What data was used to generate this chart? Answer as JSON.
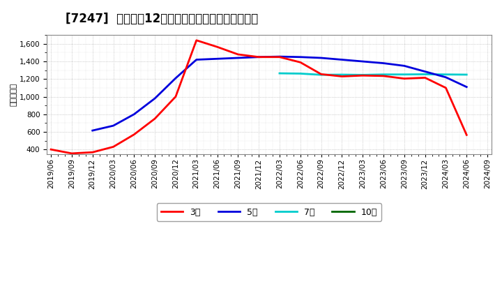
{
  "title": "[7247]  経常利益12か月移動合計の標準偏差の推移",
  "ylabel": "（百万円）",
  "ylim": [
    350,
    1700
  ],
  "yticks": [
    400,
    600,
    800,
    1000,
    1200,
    1400,
    1600
  ],
  "bg_color": "#ffffff",
  "plot_bg_color": "#ffffff",
  "grid_color": "#aaaaaa",
  "series": {
    "3year": {
      "label": "3年",
      "color": "#ff0000",
      "dates": [
        "2019/06",
        "2019/09",
        "2019/12",
        "2020/03",
        "2020/06",
        "2020/09",
        "2020/12",
        "2021/03",
        "2021/06",
        "2021/09",
        "2021/12",
        "2022/03",
        "2022/06",
        "2022/09",
        "2022/12",
        "2023/03",
        "2023/06",
        "2023/09",
        "2023/12",
        "2024/03",
        "2024/06"
      ],
      "values": [
        400,
        355,
        368,
        430,
        570,
        750,
        1000,
        1640,
        1565,
        1480,
        1450,
        1450,
        1390,
        1255,
        1230,
        1240,
        1235,
        1205,
        1215,
        1100,
        565
      ]
    },
    "5year": {
      "label": "5年",
      "color": "#0000dd",
      "dates": [
        "2019/12",
        "2020/03",
        "2020/06",
        "2020/09",
        "2020/12",
        "2021/03",
        "2021/06",
        "2021/09",
        "2021/12",
        "2022/03",
        "2022/06",
        "2022/09",
        "2022/12",
        "2023/03",
        "2023/06",
        "2023/09",
        "2023/12",
        "2024/03",
        "2024/06"
      ],
      "values": [
        615,
        670,
        800,
        980,
        1210,
        1420,
        1430,
        1440,
        1450,
        1455,
        1450,
        1440,
        1420,
        1400,
        1380,
        1350,
        1285,
        1220,
        1110
      ]
    },
    "7year": {
      "label": "7年",
      "color": "#00cccc",
      "dates": [
        "2022/03",
        "2022/06",
        "2022/09",
        "2022/12",
        "2023/03",
        "2023/06",
        "2023/09",
        "2023/12",
        "2024/03",
        "2024/06"
      ],
      "values": [
        1265,
        1262,
        1248,
        1250,
        1247,
        1252,
        1252,
        1254,
        1252,
        1250
      ]
    },
    "10year": {
      "label": "10年",
      "color": "#006600",
      "dates": [],
      "values": []
    }
  },
  "tick_dates": [
    "2019/06",
    "2019/09",
    "2019/12",
    "2020/03",
    "2020/06",
    "2020/09",
    "2020/12",
    "2021/03",
    "2021/06",
    "2021/09",
    "2021/12",
    "2022/03",
    "2022/06",
    "2022/09",
    "2022/12",
    "2023/03",
    "2023/06",
    "2023/09",
    "2023/12",
    "2024/03",
    "2024/06",
    "2024/09"
  ],
  "title_fontsize": 12,
  "tick_fontsize": 7.5,
  "label_fontsize": 8
}
